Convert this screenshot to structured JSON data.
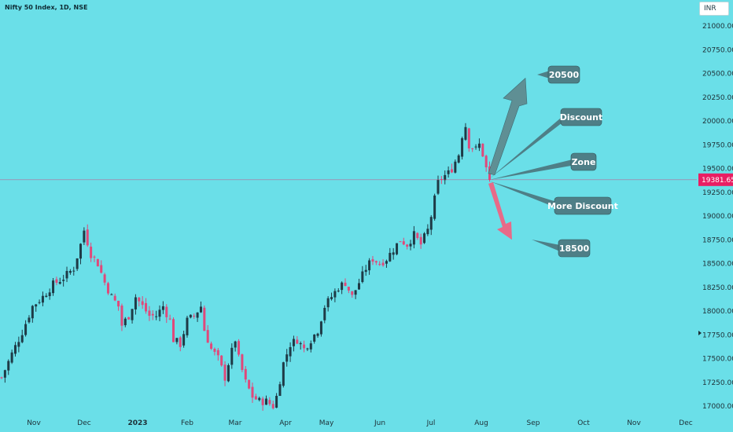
{
  "header": {
    "symbol_title": "Nifty 50 Index, 1D, NSE",
    "currency": "INR"
  },
  "price_line": {
    "label": "19381.65",
    "color": "#e91e63"
  },
  "colors": {
    "background": "#6adfe8",
    "up_candle": "#1e3a46",
    "down_candle": "#e0487a",
    "annotation_box": "#4e7f87",
    "up_arrow": "#5f8f94",
    "down_arrow": "#e76a88"
  },
  "chart_data": {
    "type": "candlestick",
    "symbol": "Nifty 50 Index",
    "interval": "1D",
    "exchange": "NSE",
    "currency": "INR",
    "ylim": [
      16920,
      21200
    ],
    "y_ticks": [
      21000,
      20750,
      20500,
      20250,
      20000,
      19750,
      19500,
      19250,
      19000,
      18750,
      18500,
      18250,
      18000,
      17750,
      17500,
      17250,
      17000
    ],
    "y_tick_labels": [
      "21000.00",
      "20750.00",
      "20500.00",
      "20250.00",
      "20000.00",
      "19750.00",
      "19500.00",
      "19250.00",
      "19000.00",
      "18750.00",
      "18500.00",
      "18250.00",
      "18000.00",
      "17750.00",
      "17500.00",
      "17250.00",
      "17000.00"
    ],
    "x_ticks": [
      "Nov",
      "Dec",
      "2023",
      "Feb",
      "Mar",
      "Apr",
      "May",
      "Jun",
      "Jul",
      "Aug",
      "Sep",
      "Oct",
      "Nov",
      "Dec"
    ],
    "last_price": 19381.65,
    "close_path": [
      [
        0,
        17300
      ],
      [
        3,
        17550
      ],
      [
        6,
        17780
      ],
      [
        9,
        18050
      ],
      [
        12,
        18150
      ],
      [
        15,
        18280
      ],
      [
        18,
        18350
      ],
      [
        21,
        18450
      ],
      [
        23,
        18700
      ],
      [
        24,
        18850
      ],
      [
        26,
        18600
      ],
      [
        28,
        18500
      ],
      [
        30,
        18300
      ],
      [
        32,
        18150
      ],
      [
        34,
        18050
      ],
      [
        35,
        17850
      ],
      [
        37,
        17950
      ],
      [
        39,
        18150
      ],
      [
        41,
        18050
      ],
      [
        43,
        17950
      ],
      [
        45,
        17950
      ],
      [
        47,
        18050
      ],
      [
        49,
        17900
      ],
      [
        50,
        17700
      ],
      [
        52,
        17650
      ],
      [
        54,
        17900
      ],
      [
        56,
        17950
      ],
      [
        58,
        18050
      ],
      [
        59,
        17800
      ],
      [
        61,
        17600
      ],
      [
        63,
        17500
      ],
      [
        65,
        17300
      ],
      [
        66,
        17450
      ],
      [
        68,
        17700
      ],
      [
        69,
        17500
      ],
      [
        71,
        17250
      ],
      [
        73,
        17100
      ],
      [
        75,
        17050
      ],
      [
        77,
        17050
      ],
      [
        79,
        17000
      ],
      [
        80,
        17100
      ],
      [
        82,
        17450
      ],
      [
        84,
        17650
      ],
      [
        86,
        17700
      ],
      [
        88,
        17600
      ],
      [
        90,
        17700
      ],
      [
        92,
        17800
      ],
      [
        94,
        18050
      ],
      [
        96,
        18150
      ],
      [
        98,
        18250
      ],
      [
        100,
        18300
      ],
      [
        102,
        18150
      ],
      [
        104,
        18300
      ],
      [
        106,
        18450
      ],
      [
        108,
        18550
      ],
      [
        110,
        18500
      ],
      [
        112,
        18550
      ],
      [
        114,
        18650
      ],
      [
        116,
        18750
      ],
      [
        118,
        18700
      ],
      [
        120,
        18800
      ],
      [
        122,
        18700
      ],
      [
        124,
        18850
      ],
      [
        125,
        19000
      ],
      [
        127,
        19350
      ],
      [
        128,
        19400
      ],
      [
        130,
        19450
      ],
      [
        131,
        19500
      ],
      [
        133,
        19650
      ],
      [
        134,
        19850
      ],
      [
        135,
        19950
      ],
      [
        136,
        19750
      ],
      [
        138,
        19700
      ],
      [
        139,
        19750
      ],
      [
        140,
        19650
      ],
      [
        141,
        19500
      ],
      [
        142,
        19381.65
      ]
    ],
    "annotations": [
      {
        "text": "20500",
        "type": "target"
      },
      {
        "text": "Discount",
        "type": "note"
      },
      {
        "text": "Zone",
        "type": "note"
      },
      {
        "text": "More Discount",
        "type": "note"
      },
      {
        "text": "18500",
        "type": "target"
      }
    ],
    "arrows": [
      {
        "direction": "up",
        "to_price": 20450
      },
      {
        "direction": "down",
        "to_price": 18750
      }
    ],
    "grid": false,
    "legend": "none"
  }
}
